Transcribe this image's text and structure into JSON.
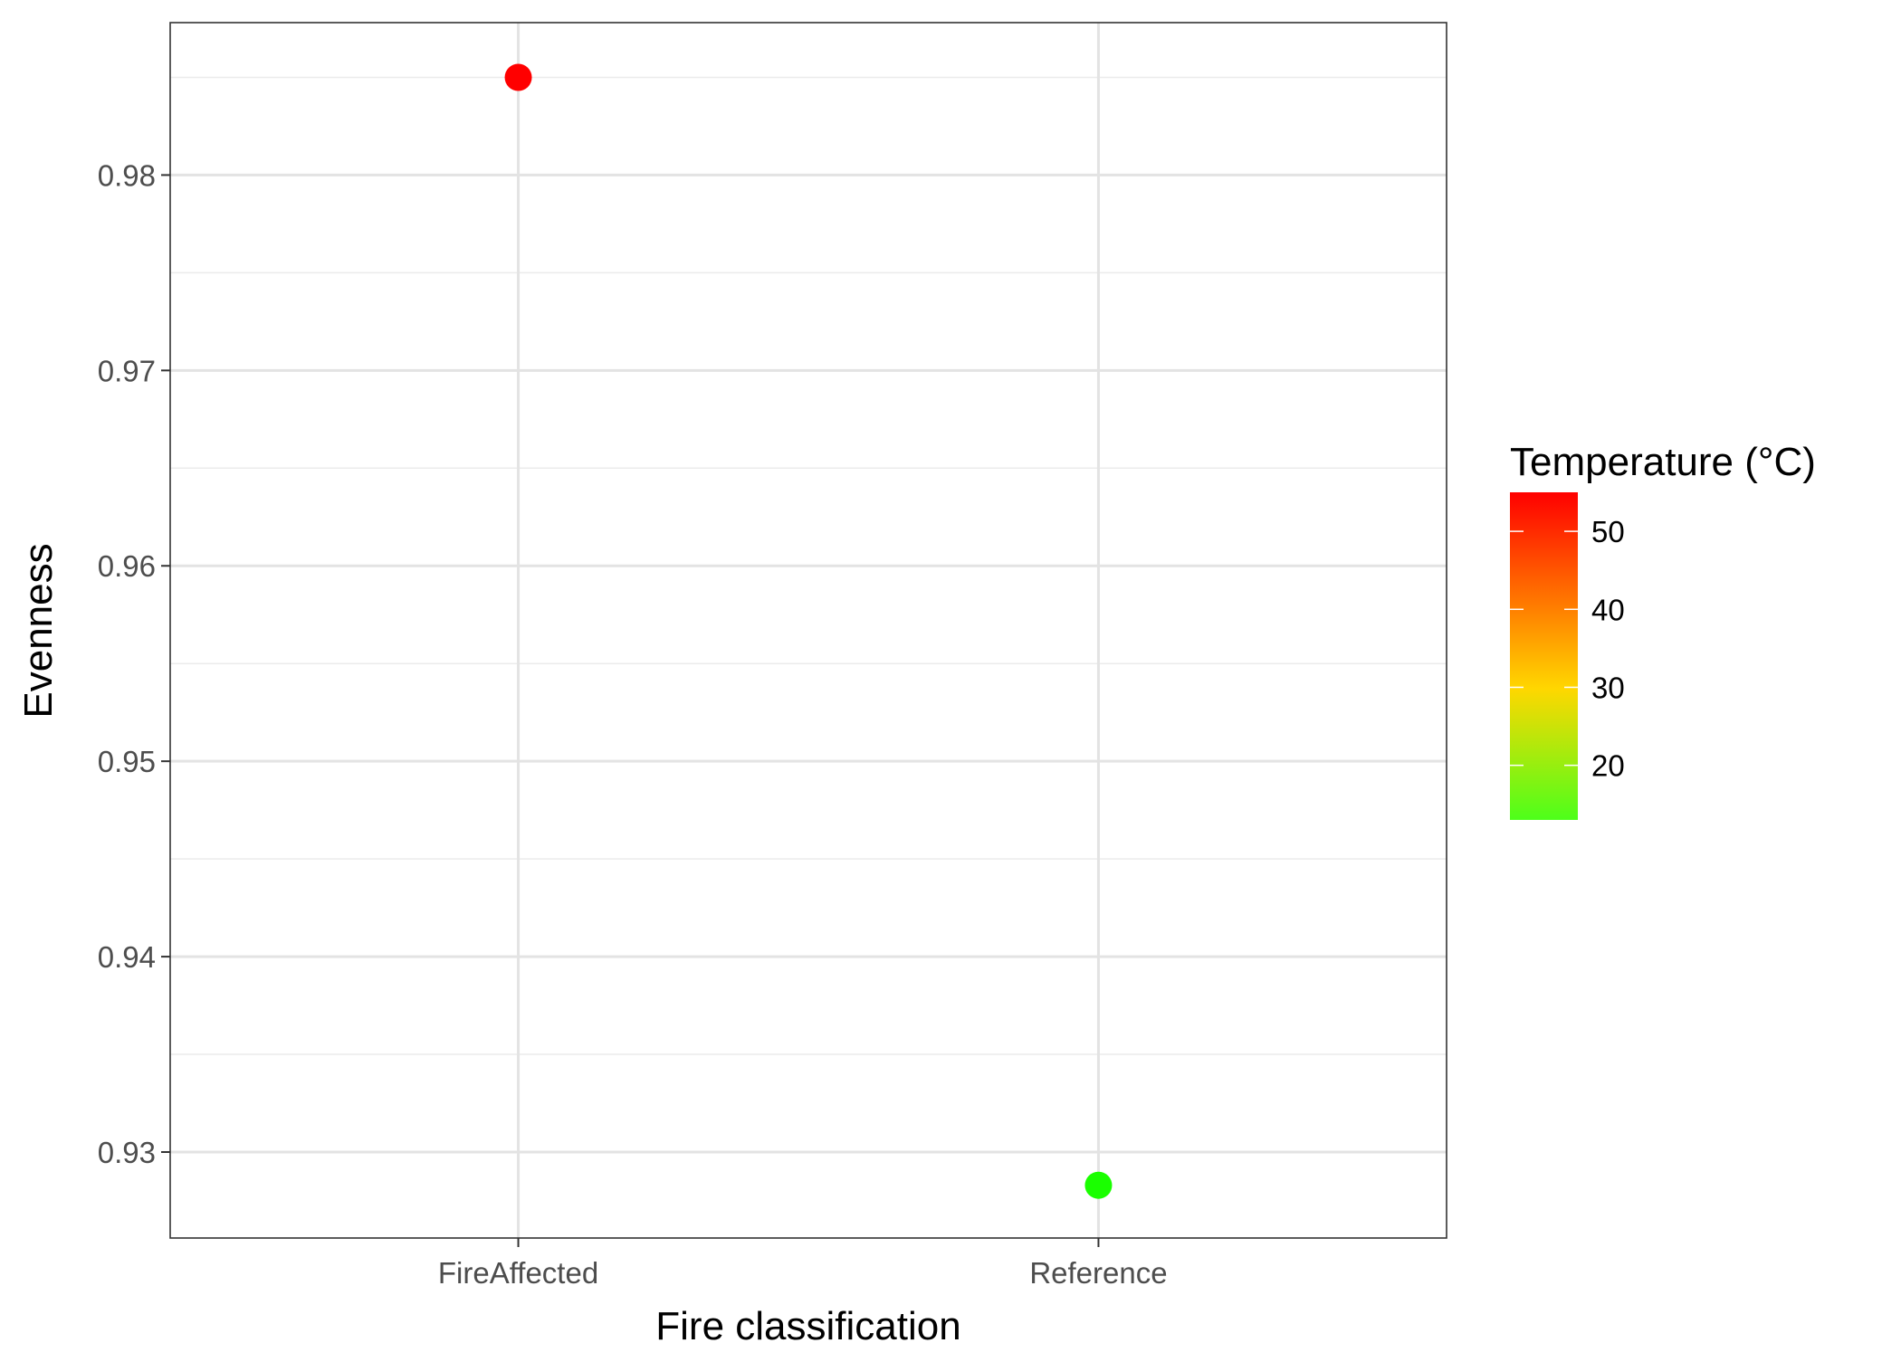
{
  "chart_data": {
    "type": "scatter",
    "title": "",
    "xlabel": "Fire classification",
    "ylabel": "Evenness",
    "categories": [
      "FireAffected",
      "Reference"
    ],
    "points": [
      {
        "x": "FireAffected",
        "y": 0.985,
        "temperature": 55,
        "color": "#ff0000"
      },
      {
        "x": "Reference",
        "y": 0.9283,
        "temperature": 13,
        "color": "#1aff00"
      }
    ],
    "ylim": [
      0.9256,
      0.9878
    ],
    "yticks": [
      0.93,
      0.94,
      0.95,
      0.96,
      0.97,
      0.98
    ],
    "ytick_labels": [
      "0.93",
      "0.94",
      "0.95",
      "0.96",
      "0.97",
      "0.98"
    ],
    "grid": true,
    "legend": {
      "title": "Temperature (°C)",
      "placement": "right",
      "type": "colorbar",
      "range": [
        13,
        55
      ],
      "breaks": [
        20,
        30,
        40,
        50
      ],
      "break_labels": [
        "20",
        "30",
        "40",
        "50"
      ],
      "colors": {
        "low": "#4dff1a",
        "mid": "#ffd700",
        "high": "#ff0000"
      }
    }
  }
}
